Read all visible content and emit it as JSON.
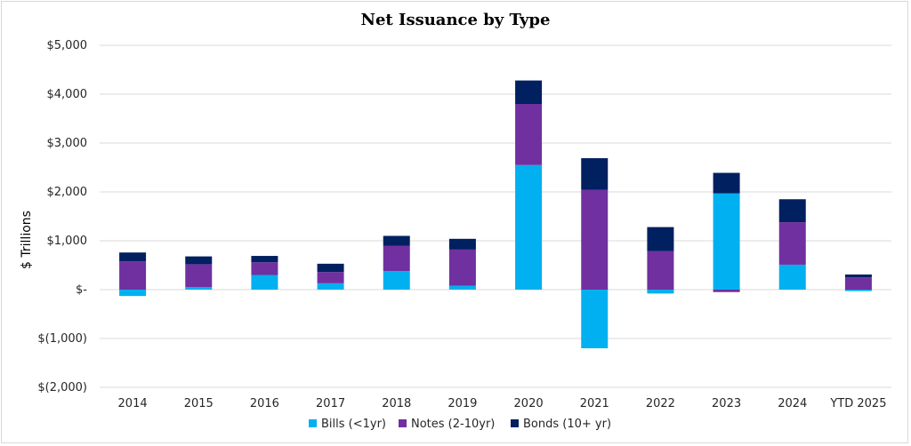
{
  "chart_data": {
    "type": "bar",
    "stacked": true,
    "title": "Net Issuance by Type",
    "ylabel": "$ Trillions",
    "xlabel": "",
    "ylim": [
      -2000,
      5000
    ],
    "yticks": [
      {
        "value": 5000,
        "label": "$5,000"
      },
      {
        "value": 4000,
        "label": "$4,000"
      },
      {
        "value": 3000,
        "label": "$3,000"
      },
      {
        "value": 2000,
        "label": "$2,000"
      },
      {
        "value": 1000,
        "label": "$1,000"
      },
      {
        "value": 0,
        "label": "$-"
      },
      {
        "value": -1000,
        "label": "$(1,000)"
      },
      {
        "value": -2000,
        "label": "$(2,000)"
      }
    ],
    "grid": true,
    "legend_position": "bottom",
    "categories": [
      "2014",
      "2015",
      "2016",
      "2017",
      "2018",
      "2019",
      "2020",
      "2021",
      "2022",
      "2023",
      "2024",
      "YTD 2025"
    ],
    "series": [
      {
        "name": "Bills (<1yr)",
        "color": "#00b0f0",
        "values": [
          -130,
          50,
          300,
          130,
          380,
          80,
          2550,
          -1200,
          -80,
          1970,
          510,
          -30
        ]
      },
      {
        "name": "Notes (2-10yr)",
        "color": "#7030a0",
        "values": [
          580,
          470,
          260,
          230,
          520,
          740,
          1250,
          2040,
          790,
          -50,
          870,
          250
        ]
      },
      {
        "name": "Bonds (10+ yr)",
        "color": "#002060",
        "values": [
          180,
          160,
          130,
          170,
          200,
          220,
          480,
          650,
          490,
          420,
          470,
          60
        ]
      }
    ]
  }
}
